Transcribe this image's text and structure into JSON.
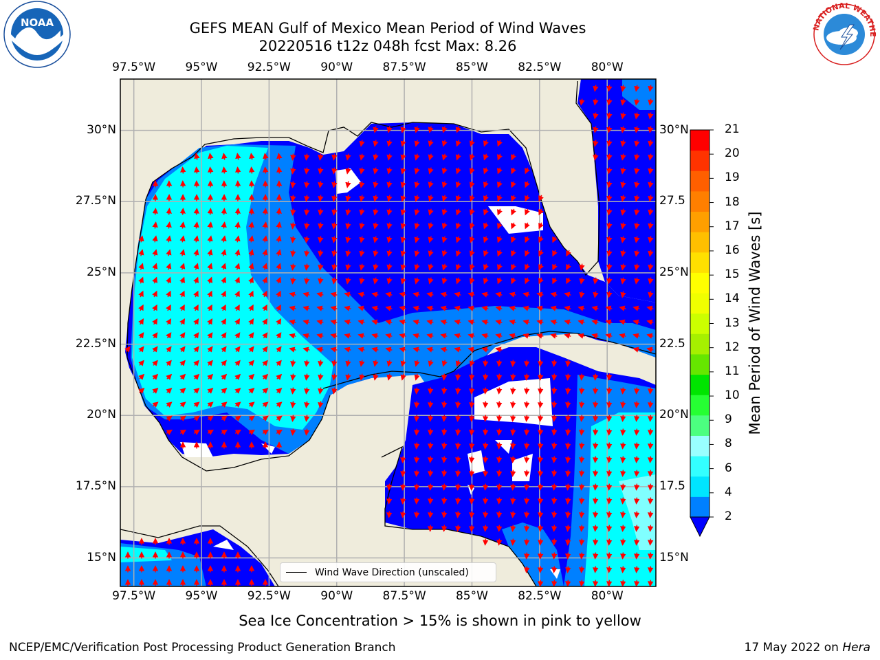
{
  "title": {
    "line1": "GEFS MEAN Gulf of Mexico Mean Period of Wind Waves",
    "line2": "20220516 t12z 048h fcst   Max: 8.26"
  },
  "map": {
    "lon_labels": [
      "97.5°W",
      "95°W",
      "92.5°W",
      "90°W",
      "87.5°W",
      "85°W",
      "82.5°W",
      "80°W"
    ],
    "lat_labels_left": [
      "30°N",
      "27.5°N",
      "25°N",
      "22.5°N",
      "20°N",
      "17.5°N",
      "15°N"
    ],
    "lat_labels_right": [
      "30°N",
      "27.5",
      "25°N",
      "22.5",
      "20°N",
      "17.5",
      "15°N"
    ],
    "lon_range": [
      -98,
      -78.2
    ],
    "lat_range": [
      14,
      31.8
    ],
    "colors": {
      "land": "#efecdc",
      "ocean_low": "#0000ff",
      "ocean_2_4": "#0080ff",
      "ocean_4_6": "#00ffff",
      "ocean_6_8": "#80ffff",
      "arrow": "#ff0000",
      "grid": "#b0b0b0"
    },
    "legend_label": "Wind Wave Direction (unscaled)"
  },
  "colorbar": {
    "title": "Mean Period of Wind Waves [s]",
    "ticks": [
      "21",
      "20",
      "19",
      "18",
      "17",
      "16",
      "15",
      "14",
      "13",
      "12",
      "11",
      "10",
      "9",
      "8",
      "6",
      "4",
      "2"
    ],
    "colors": [
      "#0080ff",
      "#00e5ff",
      "#33ffff",
      "#99ffff",
      "#4cff80",
      "#26ff33",
      "#00e500",
      "#66e600",
      "#a6f000",
      "#ccff00",
      "#f0ff00",
      "#ffff00",
      "#ffe000",
      "#ffbf00",
      "#ff9f00",
      "#ff7f00",
      "#ff5f00",
      "#ff3300",
      "#ff0000"
    ],
    "extend_color": "#0000ff"
  },
  "footer": {
    "note": "Sea Ice Concentration > 15% is shown in pink to yellow",
    "left": "NCEP/EMC/Verification Post Processing Product Generation Branch",
    "date": "17 May 2022 on",
    "host": "Hera"
  },
  "logos": {
    "noaa_text": "NOAA",
    "nws_text": "NATIONAL WEATHER SERVICE"
  }
}
